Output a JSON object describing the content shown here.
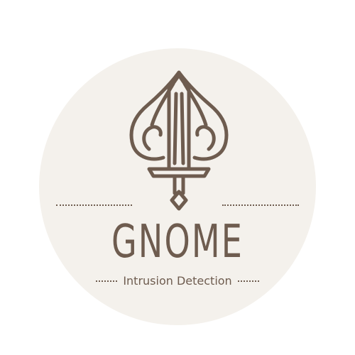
{
  "colors": {
    "badge_fill": "#f4f1ec",
    "brand": "#6e5c4f"
  },
  "logo": {
    "emblem_icon": "sword-in-spade-leaf-emblem",
    "title": "GNOME",
    "subtitle": "Intrusion Detection"
  }
}
